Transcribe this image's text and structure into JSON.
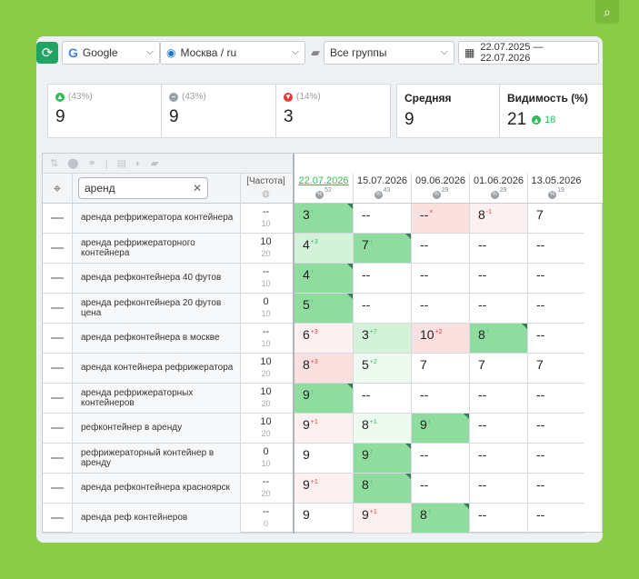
{
  "toolbar": {
    "engine": "Google",
    "region": "Москва / ru",
    "group": "Все группы",
    "date_range": "22.07.2025 — 22.07.2026"
  },
  "stats": {
    "up": {
      "pct": "(43%)",
      "value": "9"
    },
    "same": {
      "pct": "(43%)",
      "value": "9"
    },
    "down": {
      "pct": "(14%)",
      "value": "3"
    },
    "average": {
      "label": "Средняя",
      "value": "9"
    },
    "visibility": {
      "label": "Видимость (%)",
      "value": "21",
      "delta": "18"
    }
  },
  "table": {
    "search_value": "аренд",
    "freq_header": "[Частота]",
    "dates": [
      {
        "date": "22.07.2026",
        "sub": "52",
        "active": true
      },
      {
        "date": "15.07.2026",
        "sub": "43",
        "active": false
      },
      {
        "date": "09.06.2026",
        "sub": "29",
        "active": false
      },
      {
        "date": "01.06.2026",
        "sub": "29",
        "active": false
      },
      {
        "date": "13.05.2026",
        "sub": "19",
        "active": false
      }
    ],
    "rows": [
      {
        "kw": "аренда рефрижератора контейнера",
        "f1": "--",
        "f2": "10",
        "cells": [
          {
            "v": "3",
            "d": "↑",
            "t": "up",
            "c": "g1",
            "k": true
          },
          {
            "v": "--"
          },
          {
            "v": "--",
            "d": "×",
            "t": "dn",
            "c": "r1"
          },
          {
            "v": "8",
            "d": "-1",
            "t": "dn",
            "c": "r2"
          },
          {
            "v": "7"
          }
        ]
      },
      {
        "kw": "аренда рефрижераторного контейнера",
        "f1": "10",
        "f2": "20",
        "cells": [
          {
            "v": "4",
            "d": "+3",
            "t": "up",
            "c": "g2"
          },
          {
            "v": "7",
            "d": "↑",
            "t": "up",
            "c": "g1",
            "k": true
          },
          {
            "v": "--"
          },
          {
            "v": "--"
          },
          {
            "v": "--"
          }
        ]
      },
      {
        "kw": "аренда рефконтейнера 40 футов",
        "f1": "--",
        "f2": "10",
        "cells": [
          {
            "v": "4",
            "d": "↑",
            "t": "up",
            "c": "g1",
            "k": true
          },
          {
            "v": "--"
          },
          {
            "v": "--"
          },
          {
            "v": "--"
          },
          {
            "v": "--"
          }
        ]
      },
      {
        "kw": "аренда рефконтейнера 20 футов цена",
        "f1": "0",
        "f2": "10",
        "cells": [
          {
            "v": "5",
            "d": "↑",
            "t": "up",
            "c": "g1",
            "k": true
          },
          {
            "v": "--"
          },
          {
            "v": "--"
          },
          {
            "v": "--"
          },
          {
            "v": "--"
          }
        ]
      },
      {
        "kw": "аренда рефконтейнера в москве",
        "f1": "--",
        "f2": "10",
        "cells": [
          {
            "v": "6",
            "d": "+3",
            "t": "dn",
            "c": "r2"
          },
          {
            "v": "3",
            "d": "+7",
            "t": "up",
            "c": "g2"
          },
          {
            "v": "10",
            "d": "+2",
            "t": "dn",
            "c": "r1"
          },
          {
            "v": "8",
            "d": "↑",
            "t": "up",
            "c": "g1",
            "k": true
          },
          {
            "v": "--"
          }
        ]
      },
      {
        "kw": "аренда контейнера рефрижератора",
        "f1": "10",
        "f2": "20",
        "cells": [
          {
            "v": "8",
            "d": "+3",
            "t": "dn",
            "c": "r1"
          },
          {
            "v": "5",
            "d": "+2",
            "t": "up",
            "c": "g3"
          },
          {
            "v": "7"
          },
          {
            "v": "7"
          },
          {
            "v": "7"
          }
        ]
      },
      {
        "kw": "аренда рефрижераторных контейнеров",
        "f1": "10",
        "f2": "20",
        "cells": [
          {
            "v": "9",
            "d": "↑",
            "t": "up",
            "c": "g1",
            "k": true
          },
          {
            "v": "--"
          },
          {
            "v": "--"
          },
          {
            "v": "--"
          },
          {
            "v": "--"
          }
        ]
      },
      {
        "kw": "рефконтейнер в аренду",
        "f1": "10",
        "f2": "20",
        "cells": [
          {
            "v": "9",
            "d": "+1",
            "t": "dn",
            "c": "r2"
          },
          {
            "v": "8",
            "d": "+1",
            "t": "up",
            "c": "g3"
          },
          {
            "v": "9",
            "d": "↑",
            "t": "up",
            "c": "g1",
            "k": true
          },
          {
            "v": "--"
          },
          {
            "v": "--"
          }
        ]
      },
      {
        "kw": "рефрижераторный контейнер в аренду",
        "f1": "0",
        "f2": "10",
        "cells": [
          {
            "v": "9"
          },
          {
            "v": "9",
            "d": "↑",
            "t": "up",
            "c": "g1",
            "k": true
          },
          {
            "v": "--"
          },
          {
            "v": "--"
          },
          {
            "v": "--"
          }
        ]
      },
      {
        "kw": "аренда рефконтейнера красноярск",
        "f1": "--",
        "f2": "20",
        "cells": [
          {
            "v": "9",
            "d": "+1",
            "t": "dn",
            "c": "r2"
          },
          {
            "v": "8",
            "d": "↑",
            "t": "up",
            "c": "g1",
            "k": true
          },
          {
            "v": "--"
          },
          {
            "v": "--"
          },
          {
            "v": "--"
          }
        ]
      },
      {
        "kw": "аренда реф контейнеров",
        "f1": "--",
        "f2": "0",
        "cells": [
          {
            "v": "9"
          },
          {
            "v": "9",
            "d": "+1",
            "t": "dn",
            "c": "r2"
          },
          {
            "v": "8",
            "d": "↑",
            "t": "up",
            "c": "g1",
            "k": true
          },
          {
            "v": "--"
          },
          {
            "v": "--"
          }
        ]
      }
    ]
  }
}
